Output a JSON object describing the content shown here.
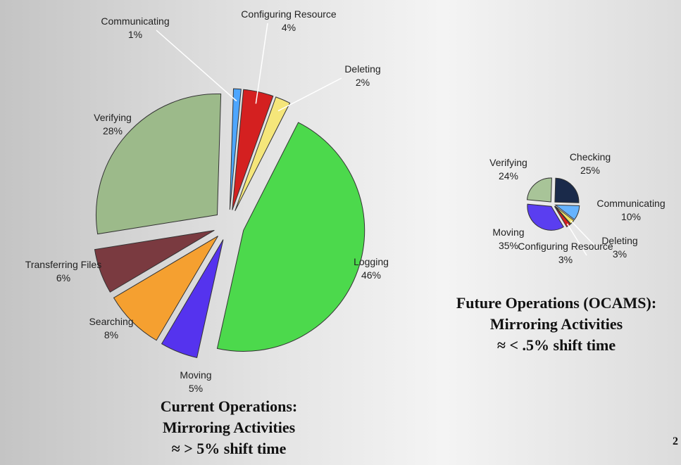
{
  "chart_data": [
    {
      "type": "pie",
      "categories": [
        "Communicating",
        "Configuring Resource",
        "Deleting",
        "Logging",
        "Moving",
        "Searching",
        "Transferring Files",
        "Verifying"
      ],
      "values": [
        1,
        4,
        2,
        46,
        5,
        8,
        6,
        28
      ],
      "value_labels": [
        "1%",
        "4%",
        "2%",
        "46%",
        "5%",
        "8%",
        "6%",
        "28%"
      ],
      "colors": [
        "#4da6ff",
        "#d42020",
        "#f5e67a",
        "#4cd94c",
        "#5533ee",
        "#f5a030",
        "#7a3a40",
        "#9cba8a"
      ],
      "title": [
        "Current  Operations:",
        "Mirroring Activities",
        "≈ > 5% shift time"
      ]
    },
    {
      "type": "pie",
      "categories": [
        "Checking",
        "Communicating",
        "Deleting",
        "Configuring Resource",
        "Moving",
        "Verifying"
      ],
      "values": [
        25,
        10,
        3,
        3,
        35,
        24
      ],
      "value_labels": [
        "25%",
        "10%",
        "3%",
        "3%",
        "35%",
        "24%"
      ],
      "colors": [
        "#1a2a4a",
        "#66b3ff",
        "#f0e060",
        "#d42020",
        "#5a3ef0",
        "#a8c498"
      ],
      "title": [
        "Future  Operations (OCAMS):",
        "Mirroring Activities",
        "≈ < .5% shift time"
      ]
    }
  ],
  "page_number": "2"
}
